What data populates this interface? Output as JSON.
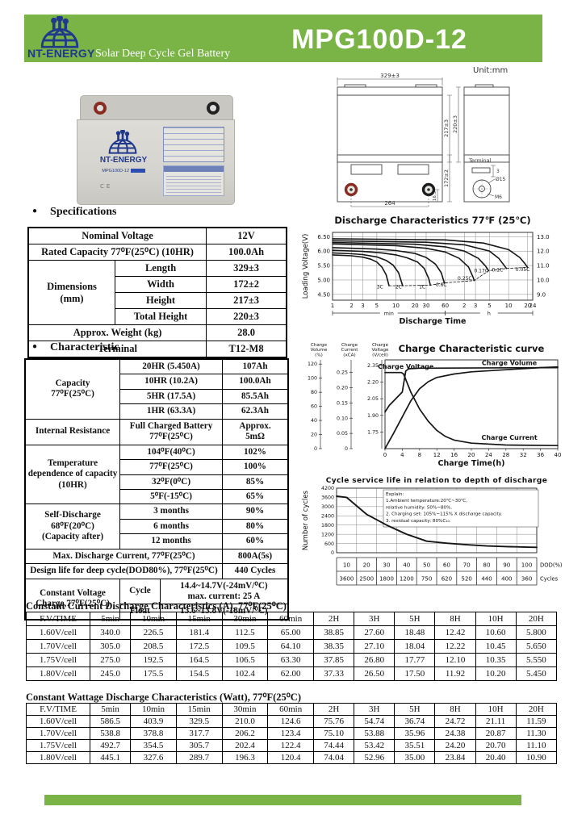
{
  "header": {
    "brand": "NT-ENERGY",
    "subtitle": "Solar Deep Cycle Gel Battery",
    "model": "MPG100D-12"
  },
  "drawing": {
    "unit": "Unit:mm",
    "dim_329": "329±3",
    "dim_217": "217±3",
    "dim_220": "220±3",
    "dim_172": "172±2",
    "dim_264": "264",
    "dim_165": "16.5",
    "terminal_title": "Terminal",
    "dim_3": "3",
    "dim_d15": "Ø15",
    "dim_m6": "M6"
  },
  "battery": {
    "brand": "NT-ENERGY",
    "model": "MPG100D-12",
    "ce": "CE"
  },
  "sections": {
    "specifications": "Specifications",
    "characteristic": "Characteristic"
  },
  "specifications": {
    "nominal_voltage_label": "Nominal Voltage",
    "nominal_voltage_value": "12V",
    "rated_capacity_label": "Rated Capacity 77⁰F(25⁰C)   (10HR)",
    "rated_capacity_value": "100.0Ah",
    "dimensions_label": "Dimensions\n(mm)",
    "dim_rows": [
      {
        "label": "Length",
        "value": "329±3"
      },
      {
        "label": "Width",
        "value": "172±2"
      },
      {
        "label": "Height",
        "value": "217±3"
      },
      {
        "label": "Total Height",
        "value": "220±3"
      }
    ],
    "weight_label": "Approx. Weight   (kg)",
    "weight_value": "28.0",
    "terminal_label": "Terminal",
    "terminal_value": "T12-M8"
  },
  "characteristic": {
    "capacity_label": "Capacity\n77⁰F(25⁰C)",
    "capacity_rows": [
      [
        "20HR (5.450A)",
        "107Ah"
      ],
      [
        "10HR (10.2A)",
        "100.0Ah"
      ],
      [
        "5HR (17.5A)",
        "85.5Ah"
      ],
      [
        "1HR (63.3A)",
        "62.3Ah"
      ]
    ],
    "ir_label": "Internal Resistance",
    "ir_cond": "Full Charged Battery\n77⁰F(25⁰C)",
    "ir_value": "Approx.\n5mΩ",
    "temp_label": "Temperature\ndependence of capacity\n(10HR)",
    "temp_rows": [
      [
        "104⁰F(40⁰C)",
        "102%"
      ],
      [
        "77⁰F(25⁰C)",
        "100%"
      ],
      [
        "32⁰F(0⁰C)",
        "85%"
      ],
      [
        "5⁰F(-15⁰C)",
        "65%"
      ]
    ],
    "self_label": "Self-Discharge\n68⁰F(20⁰C)\n(Capacity after)",
    "self_rows": [
      [
        "3 months",
        "90%"
      ],
      [
        "6 months",
        "80%"
      ],
      [
        "12 months",
        "60%"
      ]
    ],
    "max_discharge_label": "Max. Discharge Current, 77⁰F(25⁰C)",
    "max_discharge_value": "800A(5s)",
    "design_life_label": "Design life for deep cycle(DOD80%), 77⁰F(25⁰C)",
    "design_life_value": "440 Cycles",
    "cv_label": "Constant Voltage\nCharge,77⁰F(25⁰C)",
    "cycle_label": "Cycle",
    "cycle_value": "14.4~14.7V(-24mV/⁰C)\nmax. current: 25 A",
    "float_label": "Float",
    "float_value": "13.6~13.8V(-18mV/⁰C)"
  },
  "cc_table": {
    "title": "Constant Current Discharge Characteristics    (A), 77⁰F(25⁰C)",
    "headers": [
      "F.V/TIME",
      "5min",
      "10min",
      "15min",
      "30min",
      "60min",
      "2H",
      "3H",
      "5H",
      "8H",
      "10H",
      "20H"
    ],
    "rows": [
      [
        "1.60V/cell",
        "340.0",
        "226.5",
        "181.4",
        "112.5",
        "65.00",
        "38.85",
        "27.60",
        "18.48",
        "12.42",
        "10.60",
        "5.800"
      ],
      [
        "1.70V/cell",
        "305.0",
        "208.5",
        "172.5",
        "109.5",
        "64.10",
        "38.35",
        "27.10",
        "18.04",
        "12.22",
        "10.45",
        "5.650"
      ],
      [
        "1.75V/cell",
        "275.0",
        "192.5",
        "164.5",
        "106.5",
        "63.30",
        "37.85",
        "26.80",
        "17.77",
        "12.10",
        "10.35",
        "5.550"
      ],
      [
        "1.80V/cell",
        "245.0",
        "175.5",
        "154.5",
        "102.4",
        "62.00",
        "37.33",
        "26.50",
        "17.50",
        "11.92",
        "10.20",
        "5.450"
      ]
    ]
  },
  "cw_table": {
    "title": "Constant Wattage Discharge Characteristics    (Watt), 77⁰F(25⁰C)",
    "headers": [
      "F.V/TIME",
      "5min",
      "10min",
      "15min",
      "30min",
      "60min",
      "2H",
      "3H",
      "5H",
      "8H",
      "10H",
      "20H"
    ],
    "rows": [
      [
        "1.60V/cell",
        "586.5",
        "403.9",
        "329.5",
        "210.0",
        "124.6",
        "75.76",
        "54.74",
        "36.74",
        "24.72",
        "21.11",
        "11.59"
      ],
      [
        "1.70V/cell",
        "538.8",
        "378.8",
        "317.7",
        "206.2",
        "123.4",
        "75.10",
        "53.88",
        "35.96",
        "24.38",
        "20.87",
        "11.30"
      ],
      [
        "1.75V/cell",
        "492.7",
        "354.5",
        "305.7",
        "202.4",
        "122.4",
        "74.44",
        "53.42",
        "35.51",
        "24.20",
        "20.70",
        "11.10"
      ],
      [
        "1.80V/cell",
        "445.1",
        "327.6",
        "289.7",
        "196.3",
        "120.4",
        "74.04",
        "52.96",
        "35.00",
        "23.84",
        "20.40",
        "10.90"
      ]
    ]
  },
  "chart_data": [
    {
      "id": "discharge",
      "type": "line",
      "title": "Discharge Characteristics 77℉ (25℃)",
      "ylabel": "Loading Voltage(V)",
      "xlabel": "Discharge Time",
      "y_ticks_left": [
        "4.50",
        "5.00",
        "5.50",
        "6.00",
        "6.50"
      ],
      "y_ticks_right": [
        "9.0",
        "10.0",
        "11.0",
        "12.0",
        "13.0"
      ],
      "ylim": [
        4.3,
        6.65
      ],
      "x_log_max_min": 1440,
      "x_ticks": [
        [
          1,
          "1"
        ],
        [
          2,
          "2"
        ],
        [
          3,
          "3"
        ],
        [
          5,
          "5"
        ],
        [
          10,
          "10"
        ],
        [
          20,
          "20"
        ],
        [
          30,
          "30"
        ],
        [
          60,
          "60"
        ],
        [
          120,
          "2"
        ],
        [
          180,
          "3"
        ],
        [
          300,
          "5"
        ],
        [
          600,
          "10"
        ],
        [
          1200,
          "20"
        ],
        [
          1440,
          "24"
        ]
      ],
      "x_brackets": [
        [
          "min",
          1,
          60
        ],
        [
          "h",
          60,
          1440
        ]
      ],
      "series": [
        {
          "name": "3C",
          "points": [
            [
              1,
              5.87
            ],
            [
              2,
              5.84
            ],
            [
              3,
              5.79
            ],
            [
              4,
              5.72
            ],
            [
              5,
              5.62
            ],
            [
              6,
              5.45
            ],
            [
              7,
              5.18
            ],
            [
              7.8,
              4.8
            ]
          ]
        },
        {
          "name": "2C",
          "points": [
            [
              1,
              5.94
            ],
            [
              2,
              5.91
            ],
            [
              3,
              5.88
            ],
            [
              5,
              5.8
            ],
            [
              7,
              5.68
            ],
            [
              9,
              5.52
            ],
            [
              11,
              5.25
            ],
            [
              12.8,
              4.8
            ]
          ]
        },
        {
          "name": "1C",
          "points": [
            [
              1,
              6.03
            ],
            [
              3,
              5.99
            ],
            [
              6,
              5.94
            ],
            [
              10,
              5.87
            ],
            [
              15,
              5.77
            ],
            [
              22,
              5.62
            ],
            [
              28,
              5.4
            ],
            [
              33,
              5.05
            ],
            [
              35,
              4.82
            ]
          ]
        },
        {
          "name": "0.6C",
          "points": [
            [
              1,
              6.12
            ],
            [
              5,
              6.07
            ],
            [
              10,
              6.02
            ],
            [
              20,
              5.92
            ],
            [
              30,
              5.78
            ],
            [
              42,
              5.55
            ],
            [
              52,
              5.25
            ],
            [
              58,
              4.9
            ]
          ]
        },
        {
          "name": "0.25C",
          "points": [
            [
              1,
              6.25
            ],
            [
              10,
              6.19
            ],
            [
              30,
              6.1
            ],
            [
              60,
              5.97
            ],
            [
              100,
              5.75
            ],
            [
              140,
              5.45
            ],
            [
              165,
              5.1
            ],
            [
              172,
              4.98
            ]
          ]
        },
        {
          "name": "0.17C",
          "points": [
            [
              1,
              6.3
            ],
            [
              20,
              6.24
            ],
            [
              60,
              6.15
            ],
            [
              120,
              6.0
            ],
            [
              200,
              5.75
            ],
            [
              260,
              5.48
            ],
            [
              290,
              5.32
            ]
          ]
        },
        {
          "name": "0.1C",
          "points": [
            [
              1,
              6.36
            ],
            [
              30,
              6.31
            ],
            [
              120,
              6.22
            ],
            [
              300,
              6.0
            ],
            [
              420,
              5.75
            ],
            [
              520,
              5.48
            ],
            [
              555,
              5.4
            ]
          ]
        },
        {
          "name": "0.05C",
          "points": [
            [
              1,
              6.43
            ],
            [
              60,
              6.39
            ],
            [
              240,
              6.28
            ],
            [
              600,
              6.05
            ],
            [
              900,
              5.78
            ],
            [
              1100,
              5.55
            ],
            [
              1190,
              5.44
            ]
          ]
        }
      ],
      "cutoff_line": [
        [
          7.8,
          4.8
        ],
        [
          12.8,
          4.8
        ],
        [
          35,
          4.82
        ],
        [
          58,
          4.9
        ],
        [
          172,
          4.98
        ],
        [
          290,
          5.32
        ],
        [
          555,
          5.4
        ],
        [
          1190,
          5.44
        ]
      ],
      "curve_labels": [
        [
          "3C",
          5.6,
          4.7
        ],
        [
          "2C",
          11,
          4.7
        ],
        [
          "1C",
          26,
          4.7
        ],
        [
          "0.6C",
          52,
          4.78
        ],
        [
          "0.25C",
          122,
          5.0
        ],
        [
          "0.17C",
          222,
          5.27
        ],
        [
          "0.1C",
          400,
          5.29
        ],
        [
          "0.05C",
          1000,
          5.31
        ]
      ]
    },
    {
      "id": "charge",
      "type": "line",
      "title": "Charge Characteristic curve",
      "xlabel": "Charge Time(h)",
      "x_ticks": [
        0,
        4,
        8,
        12,
        16,
        20,
        24,
        28,
        32,
        36,
        40
      ],
      "axes": [
        {
          "name": "Charge\nVolume\n(%)",
          "ticks": [
            "0",
            "20",
            "40",
            "60",
            "80",
            "100",
            "120"
          ],
          "values": [
            0,
            20,
            40,
            60,
            80,
            100,
            120
          ],
          "min": 0,
          "max": 126
        },
        {
          "name": "Charge\nCurrent\n(xCA)",
          "ticks": [
            "0",
            "0.05",
            "0.10",
            "0.15",
            "0.20",
            "0.25"
          ],
          "values": [
            0,
            0.05,
            0.1,
            0.15,
            0.2,
            0.25
          ],
          "min": 0,
          "max": 0.2915
        },
        {
          "name": "Charge\nVoltage\n(V/cell)",
          "ticks": [
            "1.75",
            "1.90",
            "2.05",
            "2.20",
            "2.35"
          ],
          "values": [
            1.75,
            1.9,
            2.05,
            2.2,
            2.35
          ],
          "min": 1.6,
          "max": 2.4
        }
      ],
      "series": [
        {
          "name": "Charge Volume",
          "axis": 0,
          "label_fx": 0.72,
          "label_fy": 0.06,
          "points": [
            [
              0,
              0
            ],
            [
              2,
              22
            ],
            [
              4,
              45
            ],
            [
              6,
              68
            ],
            [
              8,
              85
            ],
            [
              10,
              95
            ],
            [
              12,
              101
            ],
            [
              16,
              106
            ],
            [
              20,
              109
            ],
            [
              28,
              112
            ],
            [
              36,
              115
            ],
            [
              40,
              116
            ]
          ]
        },
        {
          "name": "Charge Current",
          "axis": 1,
          "label_fx": 0.72,
          "label_fy": 0.9,
          "points": [
            [
              0,
              0.25
            ],
            [
              3.8,
              0.25
            ],
            [
              4.3,
              0.245
            ],
            [
              5,
              0.22
            ],
            [
              6,
              0.185
            ],
            [
              8,
              0.13
            ],
            [
              10,
              0.09
            ],
            [
              12,
              0.06
            ],
            [
              14,
              0.04
            ],
            [
              16,
              0.028
            ],
            [
              20,
              0.018
            ],
            [
              28,
              0.012
            ],
            [
              40,
              0.01
            ]
          ]
        },
        {
          "name": "Charge Voltage",
          "axis": 2,
          "label_fx": 0.12,
          "label_fy": 0.1,
          "points": [
            [
              0,
              1.93
            ],
            [
              1,
              1.99
            ],
            [
              2,
              2.03
            ],
            [
              3,
              2.07
            ],
            [
              4,
              2.11
            ],
            [
              4.3,
              2.18
            ],
            [
              4.8,
              2.3
            ],
            [
              5.5,
              2.32
            ],
            [
              8,
              2.325
            ],
            [
              40,
              2.33
            ]
          ]
        }
      ]
    },
    {
      "id": "cycle",
      "type": "line",
      "title": "Cycle service life in relation to depth of discharge",
      "ylabel": "Number of cycles",
      "y_ticks": [
        0,
        600,
        1200,
        1800,
        2400,
        3000,
        3600,
        4200
      ],
      "ylim": [
        0,
        4200
      ],
      "dod": [
        10,
        20,
        30,
        40,
        50,
        60,
        70,
        80,
        90,
        100
      ],
      "cycles": [
        3600,
        2500,
        1800,
        1200,
        750,
        620,
        520,
        440,
        400,
        360
      ],
      "dod_label": "DOD(%)",
      "cycles_label": "Cycles",
      "explain": [
        "Explain:",
        "1.Ambient temperature:20℃~30℃,",
        "   relative humidity: 50%~80%.",
        "2. Charging set: 105%~115% X discharge capacity.",
        "3. residual capacity: 80%C₁₀."
      ]
    }
  ]
}
